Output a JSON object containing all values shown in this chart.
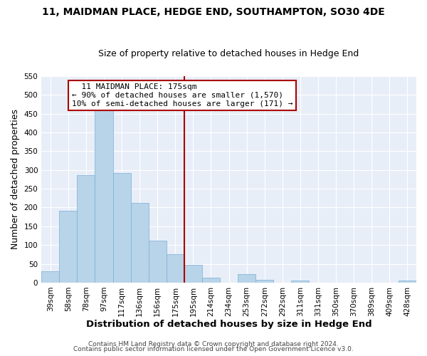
{
  "title": "11, MAIDMAN PLACE, HEDGE END, SOUTHAMPTON, SO30 4DE",
  "subtitle": "Size of property relative to detached houses in Hedge End",
  "xlabel": "Distribution of detached houses by size in Hedge End",
  "ylabel": "Number of detached properties",
  "bar_labels": [
    "39sqm",
    "58sqm",
    "78sqm",
    "97sqm",
    "117sqm",
    "136sqm",
    "156sqm",
    "175sqm",
    "195sqm",
    "214sqm",
    "234sqm",
    "253sqm",
    "272sqm",
    "292sqm",
    "311sqm",
    "331sqm",
    "350sqm",
    "370sqm",
    "389sqm",
    "409sqm",
    "428sqm"
  ],
  "bar_values": [
    30,
    192,
    287,
    458,
    292,
    213,
    111,
    75,
    47,
    14,
    0,
    22,
    8,
    0,
    5,
    0,
    0,
    0,
    0,
    0,
    5
  ],
  "bar_color": "#b8d4e8",
  "bar_edge_color": "#7bafd4",
  "vline_color": "#aa0000",
  "annotation_title": "11 MAIDMAN PLACE: 175sqm",
  "annotation_line1": "← 90% of detached houses are smaller (1,570)",
  "annotation_line2": "10% of semi-detached houses are larger (171) →",
  "annotation_box_facecolor": "#ffffff",
  "annotation_box_edgecolor": "#aa0000",
  "bg_color": "#e8eef8",
  "ylim": [
    0,
    550
  ],
  "yticks": [
    0,
    50,
    100,
    150,
    200,
    250,
    300,
    350,
    400,
    450,
    500,
    550
  ],
  "footer1": "Contains HM Land Registry data © Crown copyright and database right 2024.",
  "footer2": "Contains public sector information licensed under the Open Government Licence v3.0.",
  "title_fontsize": 10,
  "subtitle_fontsize": 9,
  "xlabel_fontsize": 9.5,
  "ylabel_fontsize": 9,
  "tick_fontsize": 7.5,
  "annotation_fontsize": 8,
  "footer_fontsize": 6.5
}
